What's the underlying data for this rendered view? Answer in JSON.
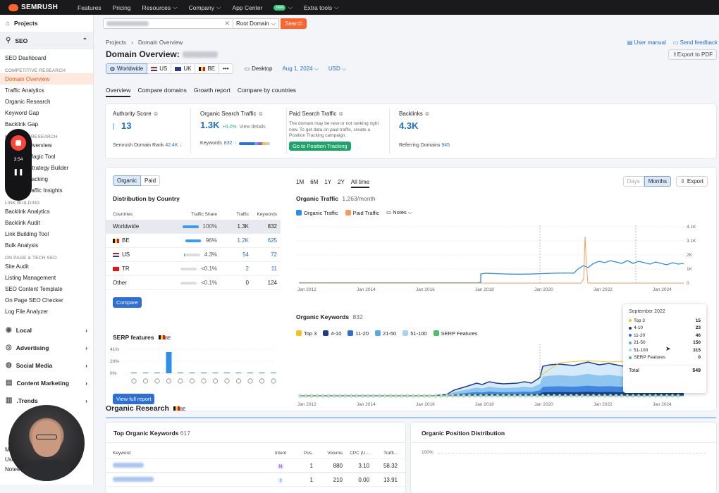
{
  "topbar": {
    "brand": "SEMRUSH",
    "nav": [
      {
        "label": "Features",
        "chev": ""
      },
      {
        "label": "Pricing",
        "chev": ""
      },
      {
        "label": "Resources",
        "chev": "⌵"
      },
      {
        "label": "Company",
        "chev": "⌵"
      },
      {
        "label": "App Center",
        "chev": "⌵",
        "badge": "new"
      },
      {
        "label": "Extra tools",
        "chev": "⌵"
      }
    ]
  },
  "sidebar": {
    "projects": "Projects",
    "seo": "SEO",
    "seo_dashboard": "SEO Dashboard",
    "sections": [
      {
        "head": "COMPETITIVE RESEARCH",
        "items": [
          "Domain Overview",
          "Traffic Analytics",
          "Organic Research",
          "Keyword Gap",
          "Backlink Gap"
        ]
      },
      {
        "head": "KEYWORD RESEARCH",
        "items": [
          "Keyword Overview",
          "Keyword Magic Tool",
          "Keyword Strategy Builder",
          "Position Tracking",
          "Organic Traffic Insights"
        ]
      },
      {
        "head": "LINK BUILDING",
        "items": [
          "Backlink Analytics",
          "Backlink Audit",
          "Link Building Tool",
          "Bulk Analysis"
        ]
      },
      {
        "head": "ON PAGE & TECH SEO",
        "items": [
          "Site Audit",
          "Listing Management",
          "SEO Content Template",
          "On Page SEO Checker",
          "Log File Analyzer"
        ]
      }
    ],
    "groups": [
      "Local",
      "Advertising",
      "Social Media",
      "Content Marketing",
      ".Trends"
    ],
    "bottom": [
      "M",
      "User",
      "Notes"
    ],
    "recorder_time": "3:54"
  },
  "search": {
    "root_domain": "Root Domain",
    "button": "Search"
  },
  "header": {
    "breadcrumb": [
      "Projects",
      "Domain Overview"
    ],
    "title": "Domain Overview:",
    "user_manual": "User manual",
    "send_feedback": "Send feedback",
    "export_pdf": "Export to PDF",
    "db": [
      "Worldwide",
      "US",
      "UK",
      "BE",
      "•••"
    ],
    "device": "Desktop",
    "date": "Aug 1, 2024",
    "currency": "USD"
  },
  "tabs": [
    "Overview",
    "Compare domains",
    "Growth report",
    "Compare by countries"
  ],
  "metrics": {
    "authority": {
      "label": "Authority Score",
      "value": "13",
      "foot_label": "Semrush Domain Rank",
      "foot_value": "42.4K"
    },
    "organic": {
      "label": "Organic Search Traffic",
      "value": "1.3K",
      "change": "+0.2%",
      "link": "View details",
      "foot_label": "Keywords",
      "foot_value": "832"
    },
    "paid": {
      "label": "Paid Search Traffic",
      "note": "The domain may be new or not ranking right now. To get data on paid traffic, create a Position Tracking campaign.",
      "button": "Go to Position Tracking"
    },
    "backlinks": {
      "label": "Backlinks",
      "value": "4.3K",
      "foot_label": "Referring Domains",
      "foot_value": "945"
    }
  },
  "distribution": {
    "toggle": [
      "Organic",
      "Paid"
    ],
    "title": "Distribution by Country",
    "headers": [
      "Countries",
      "Traffic Share",
      "Traffic",
      "Keywords"
    ],
    "rows": [
      {
        "country": "Worldwide",
        "share": "100%",
        "traffic": "1.3K",
        "keywords": "832"
      },
      {
        "country": "BE",
        "share": "96%",
        "traffic": "1.2K",
        "keywords": "625"
      },
      {
        "country": "US",
        "share": "4.3%",
        "traffic": "54",
        "keywords": "72"
      },
      {
        "country": "TR",
        "share": "<0.1%",
        "traffic": "2",
        "keywords": "11"
      },
      {
        "country": "Other",
        "share": "<0.1%",
        "traffic": "0",
        "keywords": "124"
      }
    ],
    "compare": "Compare"
  },
  "serp": {
    "title": "SERP features",
    "flag": "BE",
    "yticks": [
      "41%",
      "20%",
      "0%"
    ],
    "button": "View full report"
  },
  "ranges": [
    "1M",
    "6M",
    "1Y",
    "2Y",
    "All time"
  ],
  "gran": [
    "Days",
    "Months"
  ],
  "export": "Export",
  "organic_traffic": {
    "title": "Organic Traffic",
    "value": "1,263/month",
    "legend": [
      "Organic Traffic",
      "Paid Traffic"
    ],
    "notes": "Notes",
    "yticks": [
      "4.1K",
      "3.1K",
      "2K",
      "1K",
      "0"
    ],
    "xticks": [
      "Jan 2012",
      "Jan 2014",
      "Jan 2016",
      "Jan 2018",
      "Jan 2020",
      "Jan 2022",
      "Jan 2024"
    ]
  },
  "organic_keywords": {
    "title": "Organic Keywords",
    "value": "832",
    "legend": [
      "Top 3",
      "4-10",
      "11-20",
      "21-50",
      "51-100",
      "SERP Features"
    ],
    "xticks": [
      "Jan 2012",
      "Jan 2014",
      "Jan 2016",
      "Jan 2018",
      "Jan 2020",
      "Jan 2022",
      "Jan 2024"
    ]
  },
  "tooltip": {
    "title": "September 2022",
    "rows": [
      {
        "label": "Top 3",
        "value": "15",
        "color": "#f7c31a"
      },
      {
        "label": "4-10",
        "value": "23",
        "color": "#1a3f8f"
      },
      {
        "label": "11-20",
        "value": "46",
        "color": "#2e6fd6"
      },
      {
        "label": "21-50",
        "value": "150",
        "color": "#59a8e8"
      },
      {
        "label": "51-100",
        "value": "315",
        "color": "#a9d4f5"
      },
      {
        "label": "SERP Features",
        "value": "0",
        "color": "#48c16a"
      }
    ],
    "total_label": "Total",
    "total": "549"
  },
  "research": {
    "title": "Organic Research",
    "flag": "BE",
    "top_kw": "Top Organic Keywords",
    "top_kw_count": "617",
    "pos_dist": "Organic Position Distribution",
    "pos_tick": "100%",
    "headers": [
      "Keyword",
      "Intent",
      "Pos.",
      "Volume",
      "CPC (U...",
      "Traffi..."
    ],
    "rows": [
      {
        "intent": "N",
        "pos": "1",
        "volume": "880",
        "cpc": "3.10",
        "traffic": "58.32"
      },
      {
        "intent": "I",
        "pos": "1",
        "volume": "210",
        "cpc": "0.00",
        "traffic": "13.91"
      }
    ]
  }
}
